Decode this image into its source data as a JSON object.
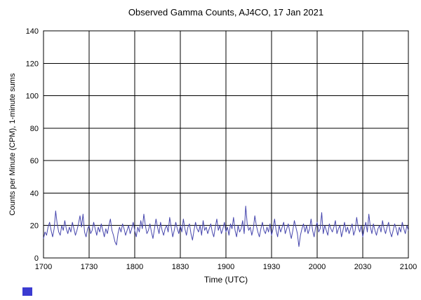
{
  "page": {
    "background": "#ffffff"
  },
  "logo": {
    "color": "#3b3bd1"
  },
  "chart_data": {
    "type": "line",
    "title": "Observed Gamma Counts, AJ4CO, 17 Jan 2021",
    "xlabel": "Time (UTC)",
    "ylabel": "Counts per Minute (CPM), 1-minute sums",
    "xlim_minutes": [
      0,
      240
    ],
    "ylim": [
      0,
      140
    ],
    "x_ticks": [
      {
        "pos": 0,
        "label": "1700"
      },
      {
        "pos": 30,
        "label": "1730"
      },
      {
        "pos": 60,
        "label": "1800"
      },
      {
        "pos": 90,
        "label": "1830"
      },
      {
        "pos": 120,
        "label": "1900"
      },
      {
        "pos": 150,
        "label": "1930"
      },
      {
        "pos": 180,
        "label": "2000"
      },
      {
        "pos": 210,
        "label": "2030"
      },
      {
        "pos": 240,
        "label": "2100"
      }
    ],
    "y_ticks": [
      0,
      20,
      40,
      60,
      80,
      100,
      120,
      140
    ],
    "grid": true,
    "legend": "none",
    "line_color": "#4646ad",
    "grid_color": "#000000",
    "sample_interval_minutes": 1,
    "values": [
      12,
      16,
      14,
      19,
      22,
      17,
      13,
      18,
      29,
      21,
      16,
      14,
      20,
      17,
      23,
      18,
      15,
      19,
      16,
      22,
      18,
      14,
      17,
      21,
      26,
      19,
      27,
      16,
      13,
      18,
      20,
      15,
      17,
      22,
      18,
      14,
      19,
      16,
      21,
      17,
      13,
      18,
      15,
      20,
      24,
      17,
      14,
      10,
      8,
      15,
      19,
      16,
      21,
      18,
      14,
      17,
      20,
      15,
      18,
      22,
      17,
      13,
      19,
      16,
      23,
      18,
      27,
      20,
      15,
      17,
      21,
      16,
      12,
      18,
      24,
      19,
      15,
      22,
      17,
      14,
      18,
      20,
      16,
      25,
      19,
      13,
      17,
      22,
      18,
      15,
      20,
      16,
      24,
      18,
      14,
      19,
      21,
      15,
      11,
      17,
      22,
      18,
      16,
      20,
      14,
      23,
      17,
      19,
      15,
      18,
      21,
      16,
      13,
      19,
      24,
      17,
      20,
      15,
      18,
      22,
      16,
      19,
      14,
      21,
      18,
      25,
      17,
      13,
      20,
      16,
      18,
      23,
      15,
      32,
      21,
      17,
      19,
      14,
      18,
      26,
      20,
      16,
      13,
      18,
      22,
      17,
      15,
      19,
      16,
      21,
      14,
      18,
      24,
      17,
      13,
      20,
      16,
      19,
      22,
      15,
      18,
      21,
      16,
      12,
      17,
      23,
      19,
      15,
      7,
      14,
      18,
      21,
      16,
      20,
      15,
      18,
      24,
      17,
      13,
      19,
      22,
      16,
      18,
      28,
      15,
      20,
      17,
      14,
      21,
      18,
      16,
      19,
      23,
      15,
      18,
      20,
      13,
      17,
      22,
      16,
      19,
      15,
      18,
      21,
      14,
      17,
      25,
      19,
      16,
      20,
      13,
      18,
      22,
      16,
      27,
      19,
      15,
      21,
      17,
      14,
      18,
      20,
      16,
      23,
      18,
      15,
      19,
      22,
      16,
      13,
      17,
      21,
      18,
      14,
      19,
      16,
      22,
      18,
      15,
      20,
      17
    ]
  }
}
